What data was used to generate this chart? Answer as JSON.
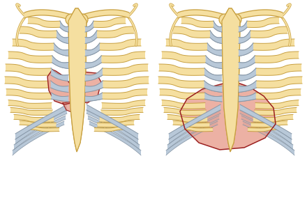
{
  "figsize": [
    4.4,
    3.03
  ],
  "dpi": 100,
  "bg_color": "#ffffff",
  "bone_fill": "#F5DFA0",
  "bone_edge": "#C8A040",
  "cart_fill": "#B8C8D8",
  "cart_edge": "#8898A8",
  "heart_fill": "#E8A090",
  "heart_edge": "#9B2020",
  "heart_fill2": "#D9897A"
}
